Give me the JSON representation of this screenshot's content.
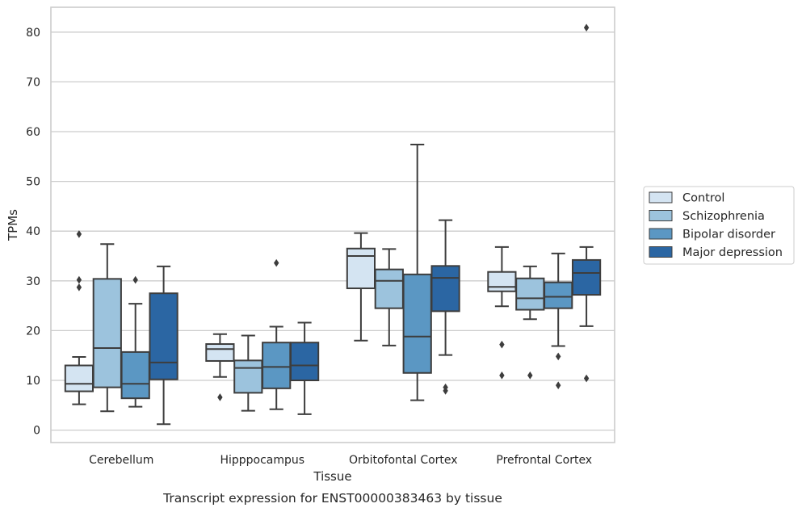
{
  "chart_data": {
    "type": "box",
    "title": "",
    "caption": "Transcript expression for ENST00000383463 by tissue",
    "xlabel": "Tissue",
    "ylabel": "TPMs",
    "ylim": [
      -2.5,
      85
    ],
    "yticks": [
      0,
      10,
      20,
      30,
      40,
      50,
      60,
      70,
      80
    ],
    "grid": "horizontal",
    "legend_position": "right",
    "categories": [
      "Cerebellum",
      "Hipppocampus",
      "Orbitofontal Cortex",
      "Prefrontal Cortex"
    ],
    "series": [
      {
        "name": "Control",
        "color": "#d4e4f2",
        "boxes": [
          {
            "whisker_low": 5.2,
            "q1": 7.8,
            "median": 9.3,
            "q3": 13.0,
            "whisker_high": 14.7,
            "outliers": [
              28.7,
              30.2,
              39.4
            ]
          },
          {
            "whisker_low": 10.7,
            "q1": 13.9,
            "median": 16.3,
            "q3": 17.3,
            "whisker_high": 19.3,
            "outliers": [
              6.6
            ]
          },
          {
            "whisker_low": 18.0,
            "q1": 28.5,
            "median": 35.0,
            "q3": 36.5,
            "whisker_high": 39.6,
            "outliers": []
          },
          {
            "whisker_low": 24.9,
            "q1": 27.9,
            "median": 28.8,
            "q3": 31.8,
            "whisker_high": 36.8,
            "outliers": [
              11.0,
              17.2
            ]
          }
        ]
      },
      {
        "name": "Schizophrenia",
        "color": "#9cc3dd",
        "boxes": [
          {
            "whisker_low": 3.8,
            "q1": 8.6,
            "median": 16.5,
            "q3": 30.4,
            "whisker_high": 37.4,
            "outliers": []
          },
          {
            "whisker_low": 3.9,
            "q1": 7.5,
            "median": 12.5,
            "q3": 14.0,
            "whisker_high": 19.0,
            "outliers": []
          },
          {
            "whisker_low": 17.0,
            "q1": 24.5,
            "median": 30.0,
            "q3": 32.3,
            "whisker_high": 36.4,
            "outliers": []
          },
          {
            "whisker_low": 22.3,
            "q1": 24.2,
            "median": 26.5,
            "q3": 30.5,
            "whisker_high": 32.9,
            "outliers": [
              11.0
            ]
          }
        ]
      },
      {
        "name": "Bipolar disorder",
        "color": "#5b97c3",
        "boxes": [
          {
            "whisker_low": 4.7,
            "q1": 6.4,
            "median": 9.3,
            "q3": 15.7,
            "whisker_high": 25.4,
            "outliers": [
              30.2
            ]
          },
          {
            "whisker_low": 4.2,
            "q1": 8.4,
            "median": 12.7,
            "q3": 17.6,
            "whisker_high": 20.8,
            "outliers": [
              33.6
            ]
          },
          {
            "whisker_low": 6.0,
            "q1": 11.5,
            "median": 18.8,
            "q3": 31.3,
            "whisker_high": 57.4,
            "outliers": []
          },
          {
            "whisker_low": 16.9,
            "q1": 24.5,
            "median": 26.8,
            "q3": 29.7,
            "whisker_high": 35.5,
            "outliers": [
              9.0,
              14.8
            ]
          }
        ]
      },
      {
        "name": "Major depression",
        "color": "#2b66a3",
        "boxes": [
          {
            "whisker_low": 1.2,
            "q1": 10.2,
            "median": 13.6,
            "q3": 27.5,
            "whisker_high": 32.9,
            "outliers": []
          },
          {
            "whisker_low": 3.2,
            "q1": 10.0,
            "median": 13.0,
            "q3": 17.6,
            "whisker_high": 21.6,
            "outliers": []
          },
          {
            "whisker_low": 15.1,
            "q1": 23.9,
            "median": 30.6,
            "q3": 33.0,
            "whisker_high": 42.2,
            "outliers": [
              7.9,
              8.6
            ]
          },
          {
            "whisker_low": 20.9,
            "q1": 27.2,
            "median": 31.6,
            "q3": 34.2,
            "whisker_high": 36.8,
            "outliers": [
              10.4,
              80.9
            ]
          }
        ]
      }
    ]
  }
}
